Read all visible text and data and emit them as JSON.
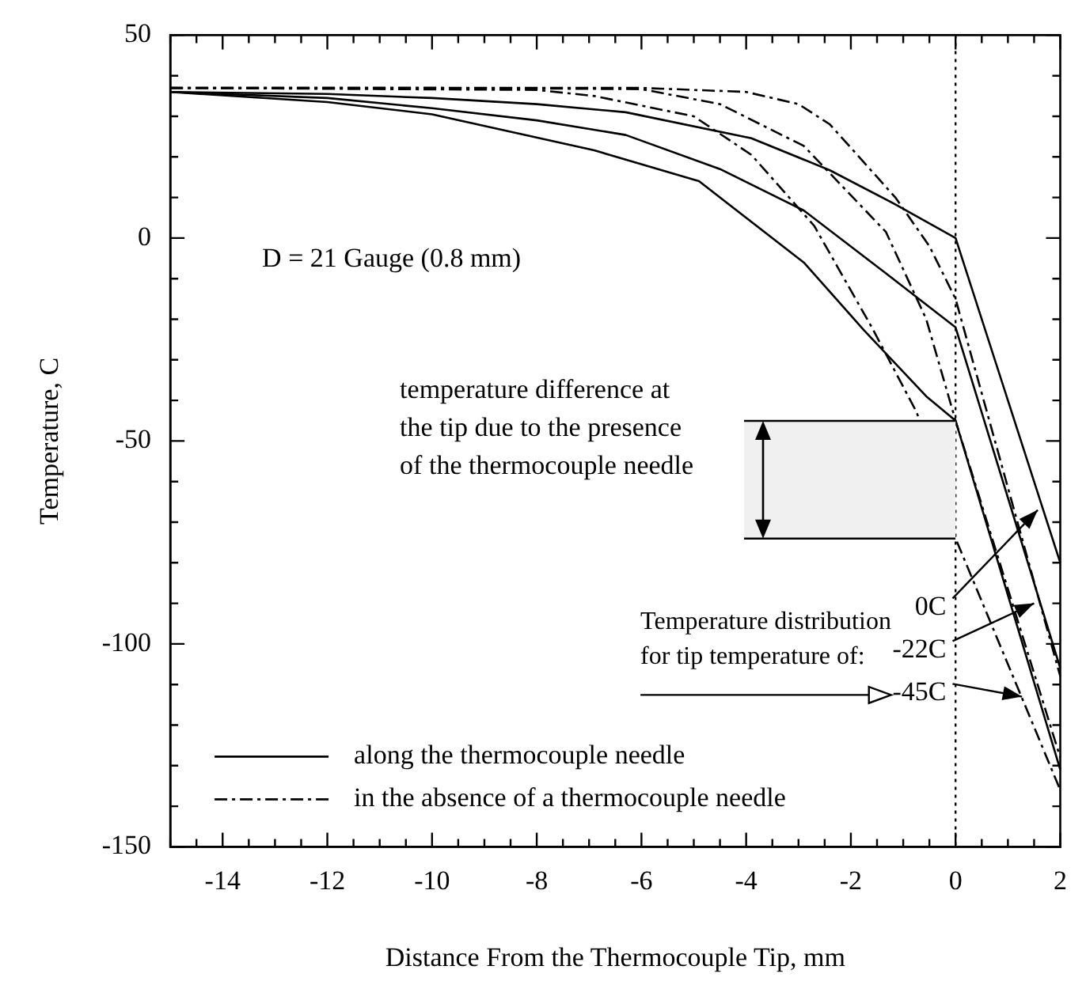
{
  "chart_data": {
    "type": "line",
    "xlabel": "Distance From the Thermocouple Tip, mm",
    "ylabel": "Temperature, C",
    "xlim": [
      -15,
      2
    ],
    "ylim": [
      -150,
      50
    ],
    "xticks": [
      {
        "value": -15,
        "label": null
      },
      {
        "value": -14.5,
        "label": null
      },
      -14,
      {
        "value": -13.5,
        "label": null
      },
      {
        "value": -13,
        "label": null
      },
      {
        "value": -12.5,
        "label": null
      },
      -12,
      {
        "value": -11.5,
        "label": null
      },
      {
        "value": -11,
        "label": null
      },
      {
        "value": -10.5,
        "label": null
      },
      -10,
      {
        "value": -9.5,
        "label": null
      },
      {
        "value": -9,
        "label": null
      },
      {
        "value": -8.5,
        "label": null
      },
      -8,
      {
        "value": -7.5,
        "label": null
      },
      {
        "value": -7,
        "label": null
      },
      {
        "value": -6.5,
        "label": null
      },
      -6,
      {
        "value": -5.5,
        "label": null
      },
      {
        "value": -5,
        "label": null
      },
      {
        "value": -4.5,
        "label": null
      },
      -4,
      {
        "value": -3.5,
        "label": null
      },
      {
        "value": -3,
        "label": null
      },
      {
        "value": -2.5,
        "label": null
      },
      -2,
      {
        "value": -1.5,
        "label": null
      },
      {
        "value": -1,
        "label": null
      },
      {
        "value": -0.5,
        "label": null
      },
      0,
      {
        "value": 0.5,
        "label": null
      },
      {
        "value": 1,
        "label": null
      },
      {
        "value": 1.5,
        "label": null
      },
      2
    ],
    "yticks": [
      -150,
      {
        "value": -140,
        "label": null
      },
      {
        "value": -130,
        "label": null
      },
      {
        "value": -120,
        "label": null
      },
      {
        "value": -110,
        "label": null
      },
      -100,
      {
        "value": -90,
        "label": null
      },
      {
        "value": -80,
        "label": null
      },
      {
        "value": -70,
        "label": null
      },
      {
        "value": -60,
        "label": null
      },
      -50,
      {
        "value": -40,
        "label": null
      },
      {
        "value": -30,
        "label": null
      },
      {
        "value": -20,
        "label": null
      },
      {
        "value": -10,
        "label": null
      },
      0,
      {
        "value": 10,
        "label": null
      },
      {
        "value": 20,
        "label": null
      },
      {
        "value": 30,
        "label": null
      },
      {
        "value": 40,
        "label": null
      },
      50
    ],
    "series": [
      {
        "name": "along the thermocouple needle",
        "color": "#000000",
        "line_style": "solid",
        "x": [
          -15,
          -12,
          -10,
          -8,
          -6.3,
          -3.9,
          -2.4,
          -1.15,
          0,
          2
        ],
        "values": [
          36,
          35.5,
          34.5,
          33,
          31,
          24.6,
          16.7,
          8.3,
          0,
          -80
        ]
      },
      {
        "color": "#000000",
        "line_style": "solid",
        "x": [
          -15,
          -12,
          -10,
          -8,
          -6.3,
          -4.5,
          -2.9,
          -1.33,
          0,
          2
        ],
        "values": [
          36,
          34.5,
          32,
          29,
          25.4,
          17,
          6.8,
          -8.7,
          -22,
          -106
        ]
      },
      {
        "color": "#000000",
        "line_style": "solid",
        "x": [
          -15,
          -12,
          -10,
          -6.9,
          -4.9,
          -2.9,
          -1.75,
          -0.56,
          0,
          2
        ],
        "values": [
          36,
          33.5,
          30.5,
          21.6,
          14,
          -6,
          -22.7,
          -39,
          -45,
          -131
        ]
      },
      {
        "name": "in the absence of a thermocouple needle",
        "color": "#000000",
        "line_style": "dashed",
        "x": [
          -15,
          -10,
          -6,
          -4,
          -3,
          -2.4,
          -1.15,
          -0.5,
          0,
          2
        ],
        "values": [
          37,
          37,
          37,
          36,
          33,
          28,
          10,
          -2,
          -15,
          -108
        ]
      },
      {
        "color": "#000000",
        "line_style": "dashed",
        "x": [
          -15,
          -10,
          -6,
          -4.5,
          -2.9,
          -1.33,
          -0.56,
          0,
          2
        ],
        "values": [
          37,
          37,
          36.7,
          33,
          22.7,
          1.5,
          -20,
          -45,
          -128
        ]
      },
      {
        "color": "#000000",
        "line_style": "dashed",
        "x": [
          -15,
          -8,
          -6.9,
          -5,
          -3.9,
          -2.7,
          -1.6,
          -0.74,
          0,
          2
        ],
        "values": [
          37,
          36.5,
          35,
          30,
          20.5,
          3,
          -22,
          -43,
          -74,
          -136
        ]
      }
    ],
    "ref_lines": [
      {
        "axis": "x",
        "value": 0,
        "line_style": "dotted",
        "color": "#000000"
      }
    ],
    "bands": [
      {
        "axis": "y",
        "from": -74,
        "to": -45,
        "color": "#f0f0f0",
        "label": "temperature difference at\nthe tip due to the presence\nof the thermocouple needle"
      }
    ],
    "annotations": [
      "D = 21 Gauge (0.8 mm)",
      "Temperature distribution\nfor tip temperature of:",
      {
        "text": "0C",
        "x": 1.57,
        "y": -67
      },
      {
        "text": "-22C",
        "x": 1.5,
        "y": -90
      },
      {
        "text": "-45C",
        "x": 1.27,
        "y": -113
      }
    ],
    "marker": "none",
    "grid": false,
    "legend": "bottom left"
  }
}
